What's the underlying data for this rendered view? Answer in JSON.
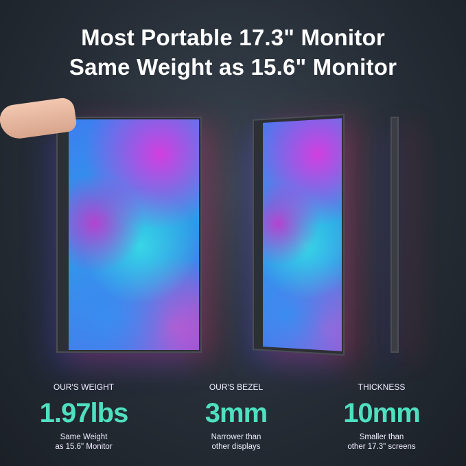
{
  "headline": {
    "line1": "Most Portable 17.3\" Monitor",
    "line2": "Same Weight as 15.6\" Monitor"
  },
  "accent_color": "#4fe0c0",
  "specs": [
    {
      "label": "OUR'S WEIGHT",
      "value": "1.97lbs",
      "desc1": "Same Weight",
      "desc2": "as 15.6\" Monitor"
    },
    {
      "label": "OUR'S BEZEL",
      "value": "3mm",
      "desc1": "Narrower than",
      "desc2": "other displays"
    },
    {
      "label": "THICKNESS",
      "value": "10mm",
      "desc1": "Smaller than",
      "desc2": "other 17.3\" screens"
    }
  ]
}
